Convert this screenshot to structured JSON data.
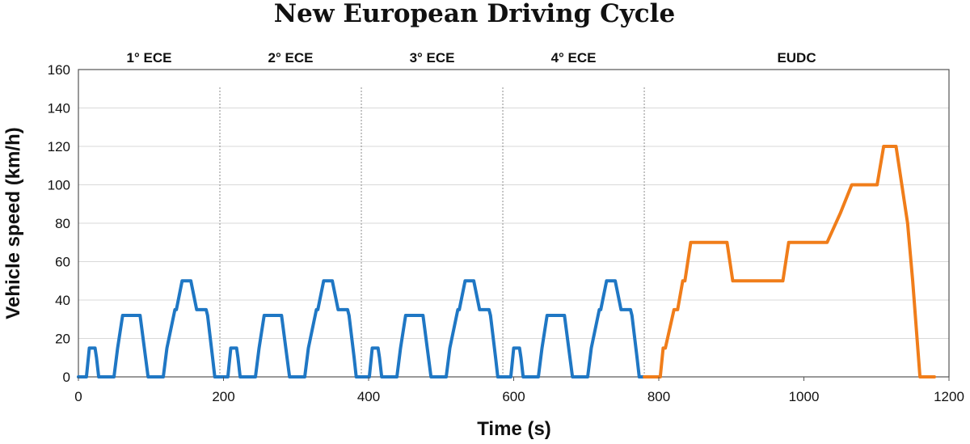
{
  "chart_data": {
    "type": "line",
    "title": "New European Driving Cycle",
    "xlabel": "Time (s)",
    "ylabel": "Vehicle speed  (km/h)",
    "xlim": [
      0,
      1200
    ],
    "ylim": [
      0,
      160
    ],
    "x_ticks": [
      "0",
      "200",
      "400",
      "600",
      "800",
      "1000",
      "1200"
    ],
    "y_ticks": [
      "0",
      "20",
      "40",
      "60",
      "80",
      "100",
      "120",
      "140",
      "160"
    ],
    "grid": "horizontal",
    "segment_boundaries": [
      195,
      390,
      585,
      780
    ],
    "segments": [
      {
        "label": "1° ECE",
        "x": 97.5
      },
      {
        "label": "2° ECE",
        "x": 292.5
      },
      {
        "label": "3° ECE",
        "x": 487.5
      },
      {
        "label": "4° ECE",
        "x": 682.5
      },
      {
        "label": "EUDC",
        "x": 990
      }
    ],
    "colors": {
      "ece": "#1f77c4",
      "eudc": "#f07d1a"
    },
    "series": [
      {
        "segment": "ECE",
        "cycle_length_s": 195,
        "repeats": 4,
        "x": [
          0,
          11,
          15,
          23,
          25,
          28,
          49,
          54,
          61,
          85,
          96,
          117,
          122,
          133,
          135,
          143,
          155,
          163,
          176,
          178,
          185,
          188,
          195
        ],
        "y": [
          0,
          0,
          15,
          15,
          10,
          0,
          0,
          15,
          32,
          32,
          0,
          0,
          15,
          35,
          35,
          50,
          50,
          35,
          35,
          32,
          10,
          0,
          0
        ]
      },
      {
        "segment": "EUDC",
        "x": [
          780,
          800,
          802,
          806,
          809,
          821,
          826,
          833,
          836,
          844,
          894,
          902,
          902,
          971,
          979,
          983,
          1032,
          1050,
          1066,
          1066,
          1101,
          1110,
          1119,
          1127,
          1143,
          1150,
          1160,
          1180
        ],
        "y": [
          0,
          0,
          0,
          15,
          15,
          35,
          35,
          50,
          50,
          70,
          70,
          50,
          50,
          50,
          70,
          70,
          70,
          85,
          100,
          100,
          100,
          120,
          120,
          120,
          80,
          50,
          0,
          0
        ]
      }
    ]
  }
}
